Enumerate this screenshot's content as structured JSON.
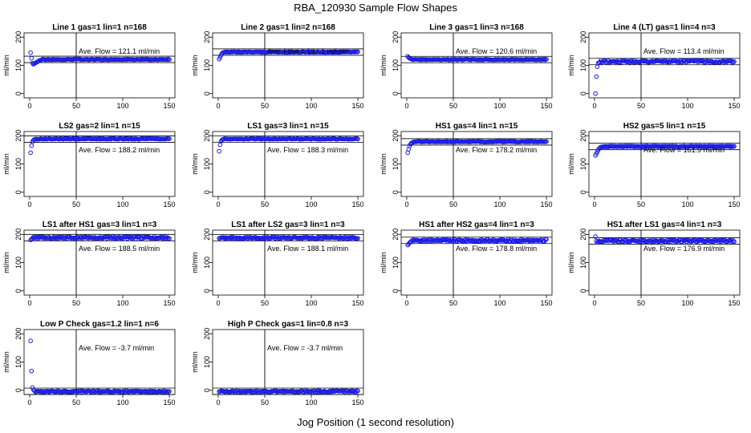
{
  "page_title": "RBA_120930  Sample Flow Shapes",
  "x_axis_title": "Jog Position (1 second resolution)",
  "chart_data": [
    {
      "type": "scatter",
      "title": "Line 1 gas=1 lin=1 n=168",
      "ylabel": "ml/min",
      "xlim": [
        0,
        150
      ],
      "ylim": [
        0,
        200
      ],
      "xticks": [
        0,
        50,
        100,
        150
      ],
      "yticks": [
        0,
        100,
        200
      ],
      "marker_x": 50,
      "mean_line": 121.1,
      "annotation": "Ave. Flow =  121.1  ml/min",
      "points": [
        [
          1,
          145
        ],
        [
          2,
          125
        ],
        [
          3,
          108
        ],
        [
          4,
          104
        ],
        [
          5,
          106
        ],
        [
          6,
          108
        ],
        [
          7,
          110
        ],
        [
          8,
          112
        ],
        [
          9,
          114
        ],
        [
          10,
          116
        ],
        [
          11,
          118
        ],
        [
          12,
          119
        ],
        [
          13,
          120
        ]
      ],
      "steady_value": 121,
      "steady_jitter": 1.5
    },
    {
      "type": "scatter",
      "title": "Line 2 gas=1 lin=2 n=168",
      "ylabel": "ml/min",
      "xlim": [
        0,
        150
      ],
      "ylim": [
        0,
        200
      ],
      "xticks": [
        0,
        50,
        100,
        150
      ],
      "yticks": [
        0,
        100,
        200
      ],
      "marker_x": 50,
      "mean_line": 147.1,
      "annotation": "Ave. Flow =  147.1  ml/min",
      "points": [
        [
          1,
          122
        ],
        [
          2,
          128
        ],
        [
          3,
          136
        ],
        [
          4,
          142
        ],
        [
          5,
          145
        ],
        [
          6,
          146
        ],
        [
          7,
          147
        ]
      ],
      "steady_value": 147,
      "steady_jitter": 1.5
    },
    {
      "type": "scatter",
      "title": "Line 3 gas=1 lin=3 n=168",
      "ylabel": "ml/min",
      "xlim": [
        0,
        150
      ],
      "ylim": [
        0,
        200
      ],
      "xticks": [
        0,
        50,
        100,
        150
      ],
      "yticks": [
        0,
        100,
        200
      ],
      "marker_x": 50,
      "mean_line": 120.6,
      "annotation": "Ave. Flow =  120.6  ml/min",
      "points": [
        [
          1,
          132
        ],
        [
          2,
          128
        ],
        [
          3,
          125
        ],
        [
          4,
          123
        ],
        [
          5,
          122
        ],
        [
          6,
          121
        ]
      ],
      "steady_value": 120.5,
      "steady_jitter": 1.5
    },
    {
      "type": "scatter",
      "title": "Line 4 (LT) gas=1 lin=4 n=3",
      "ylabel": "ml/min",
      "xlim": [
        0,
        150
      ],
      "ylim": [
        0,
        200
      ],
      "xticks": [
        0,
        50,
        100,
        150
      ],
      "yticks": [
        0,
        100,
        200
      ],
      "marker_x": 50,
      "mean_line": 113.4,
      "annotation": "Ave. Flow =  113.4  ml/min",
      "points": [
        [
          1,
          0
        ],
        [
          2,
          60
        ],
        [
          3,
          95
        ],
        [
          4,
          108
        ],
        [
          5,
          110
        ],
        [
          6,
          112
        ]
      ],
      "steady_value": 114,
      "steady_jitter": 4
    },
    {
      "type": "scatter",
      "title": "LS2 gas=2 lin=1 n=15",
      "ylabel": "ml/min",
      "xlim": [
        0,
        150
      ],
      "ylim": [
        0,
        200
      ],
      "xticks": [
        0,
        50,
        100,
        150
      ],
      "yticks": [
        0,
        100,
        200
      ],
      "marker_x": 50,
      "mean_line": 188.2,
      "annotation": "Ave. Flow =  188.2  ml/min",
      "points": [
        [
          1,
          140
        ],
        [
          2,
          165
        ],
        [
          3,
          178
        ],
        [
          4,
          184
        ],
        [
          5,
          187
        ],
        [
          6,
          188
        ]
      ],
      "steady_value": 189,
      "steady_jitter": 1.5
    },
    {
      "type": "scatter",
      "title": "LS1 gas=3 lin=1 n=15",
      "ylabel": "ml/min",
      "xlim": [
        0,
        150
      ],
      "ylim": [
        0,
        200
      ],
      "xticks": [
        0,
        50,
        100,
        150
      ],
      "yticks": [
        0,
        100,
        200
      ],
      "marker_x": 50,
      "mean_line": 188.3,
      "annotation": "Ave. Flow =  188.3  ml/min",
      "points": [
        [
          1,
          145
        ],
        [
          2,
          168
        ],
        [
          3,
          180
        ],
        [
          4,
          185
        ],
        [
          5,
          187
        ],
        [
          6,
          188
        ]
      ],
      "steady_value": 189,
      "steady_jitter": 1.5
    },
    {
      "type": "scatter",
      "title": "HS1 gas=4 lin=1 n=15",
      "ylabel": "ml/min",
      "xlim": [
        0,
        150
      ],
      "ylim": [
        0,
        200
      ],
      "xticks": [
        0,
        50,
        100,
        150
      ],
      "yticks": [
        0,
        100,
        200
      ],
      "marker_x": 50,
      "mean_line": 178.2,
      "annotation": "Ave. Flow =  178.2  ml/min",
      "points": [
        [
          1,
          140
        ],
        [
          2,
          152
        ],
        [
          3,
          163
        ],
        [
          4,
          170
        ],
        [
          5,
          174
        ],
        [
          6,
          176
        ],
        [
          7,
          178
        ]
      ],
      "steady_value": 179,
      "steady_jitter": 1.5
    },
    {
      "type": "scatter",
      "title": "HS2 gas=5 lin=1 n=15",
      "ylabel": "ml/min",
      "xlim": [
        0,
        150
      ],
      "ylim": [
        0,
        200
      ],
      "xticks": [
        0,
        50,
        100,
        150
      ],
      "yticks": [
        0,
        100,
        200
      ],
      "marker_x": 50,
      "mean_line": 161.9,
      "annotation": "Ave. Flow =  161.9  ml/min",
      "points": [
        [
          1,
          130
        ],
        [
          2,
          136
        ],
        [
          3,
          143
        ],
        [
          4,
          150
        ],
        [
          5,
          155
        ],
        [
          6,
          158
        ],
        [
          7,
          160
        ],
        [
          8,
          161
        ]
      ],
      "steady_value": 162,
      "steady_jitter": 1.5
    },
    {
      "type": "scatter",
      "title": "LS1 after HS1 gas=3 lin=1 n=3",
      "ylabel": "ml/min",
      "xlim": [
        0,
        150
      ],
      "ylim": [
        0,
        200
      ],
      "xticks": [
        0,
        50,
        100,
        150
      ],
      "yticks": [
        0,
        100,
        200
      ],
      "marker_x": 50,
      "mean_line": 188.5,
      "annotation": "Ave. Flow =  188.5  ml/min",
      "points": [
        [
          1,
          180
        ],
        [
          2,
          183
        ],
        [
          3,
          186
        ]
      ],
      "steady_value": 188.5,
      "steady_jitter": 4
    },
    {
      "type": "scatter",
      "title": "LS1 after LS2 gas=3 lin=1 n=3",
      "ylabel": "ml/min",
      "xlim": [
        0,
        150
      ],
      "ylim": [
        0,
        200
      ],
      "xticks": [
        0,
        50,
        100,
        150
      ],
      "yticks": [
        0,
        100,
        200
      ],
      "marker_x": 50,
      "mean_line": 188.1,
      "annotation": "Ave. Flow =  188.1  ml/min",
      "points": [
        [
          1,
          186
        ],
        [
          2,
          187
        ]
      ],
      "steady_value": 188,
      "steady_jitter": 3
    },
    {
      "type": "scatter",
      "title": "HS1 after HS2 gas=4 lin=1 n=3",
      "ylabel": "ml/min",
      "xlim": [
        0,
        150
      ],
      "ylim": [
        0,
        200
      ],
      "xticks": [
        0,
        50,
        100,
        150
      ],
      "yticks": [
        0,
        100,
        200
      ],
      "marker_x": 50,
      "mean_line": 178.8,
      "annotation": "Ave. Flow =  178.8  ml/min",
      "points": [
        [
          1,
          162
        ],
        [
          2,
          166
        ],
        [
          3,
          170
        ],
        [
          4,
          173
        ],
        [
          5,
          175
        ]
      ],
      "steady_value": 179,
      "steady_jitter": 4
    },
    {
      "type": "scatter",
      "title": "HS1 after LS1 gas=4 lin=1 n=3",
      "ylabel": "ml/min",
      "xlim": [
        0,
        150
      ],
      "ylim": [
        0,
        200
      ],
      "xticks": [
        0,
        50,
        100,
        150
      ],
      "yticks": [
        0,
        100,
        200
      ],
      "marker_x": 50,
      "mean_line": 176.9,
      "annotation": "Ave. Flow =  176.9  ml/min",
      "points": [
        [
          1,
          192
        ],
        [
          2,
          176
        ],
        [
          3,
          172
        ],
        [
          4,
          174
        ]
      ],
      "steady_value": 177,
      "steady_jitter": 4
    },
    {
      "type": "scatter",
      "title": "Low P Check gas=1.2 lin=1 n=6",
      "ylabel": "ml/min",
      "xlim": [
        0,
        150
      ],
      "ylim": [
        0,
        200
      ],
      "xticks": [
        0,
        50,
        100,
        150
      ],
      "yticks": [
        0,
        100,
        200
      ],
      "marker_x": 50,
      "mean_line": -3.7,
      "annotation": "Ave. Flow =  -3.7  ml/min",
      "points": [
        [
          1,
          175
        ],
        [
          2,
          68
        ],
        [
          3,
          10
        ],
        [
          4,
          2
        ],
        [
          5,
          -1
        ]
      ],
      "steady_value": -4,
      "steady_jitter": 2.5
    },
    {
      "type": "scatter",
      "title": "High P Check gas=1 lin=0.8 n=3",
      "ylabel": "ml/min",
      "xlim": [
        0,
        150
      ],
      "ylim": [
        0,
        200
      ],
      "xticks": [
        0,
        50,
        100,
        150
      ],
      "yticks": [
        0,
        100,
        200
      ],
      "marker_x": 50,
      "mean_line": -3.7,
      "annotation": "Ave. Flow =  -3.7  ml/min",
      "points": [
        [
          1,
          -5
        ],
        [
          2,
          -4
        ]
      ],
      "steady_value": -4,
      "steady_jitter": 3
    }
  ]
}
